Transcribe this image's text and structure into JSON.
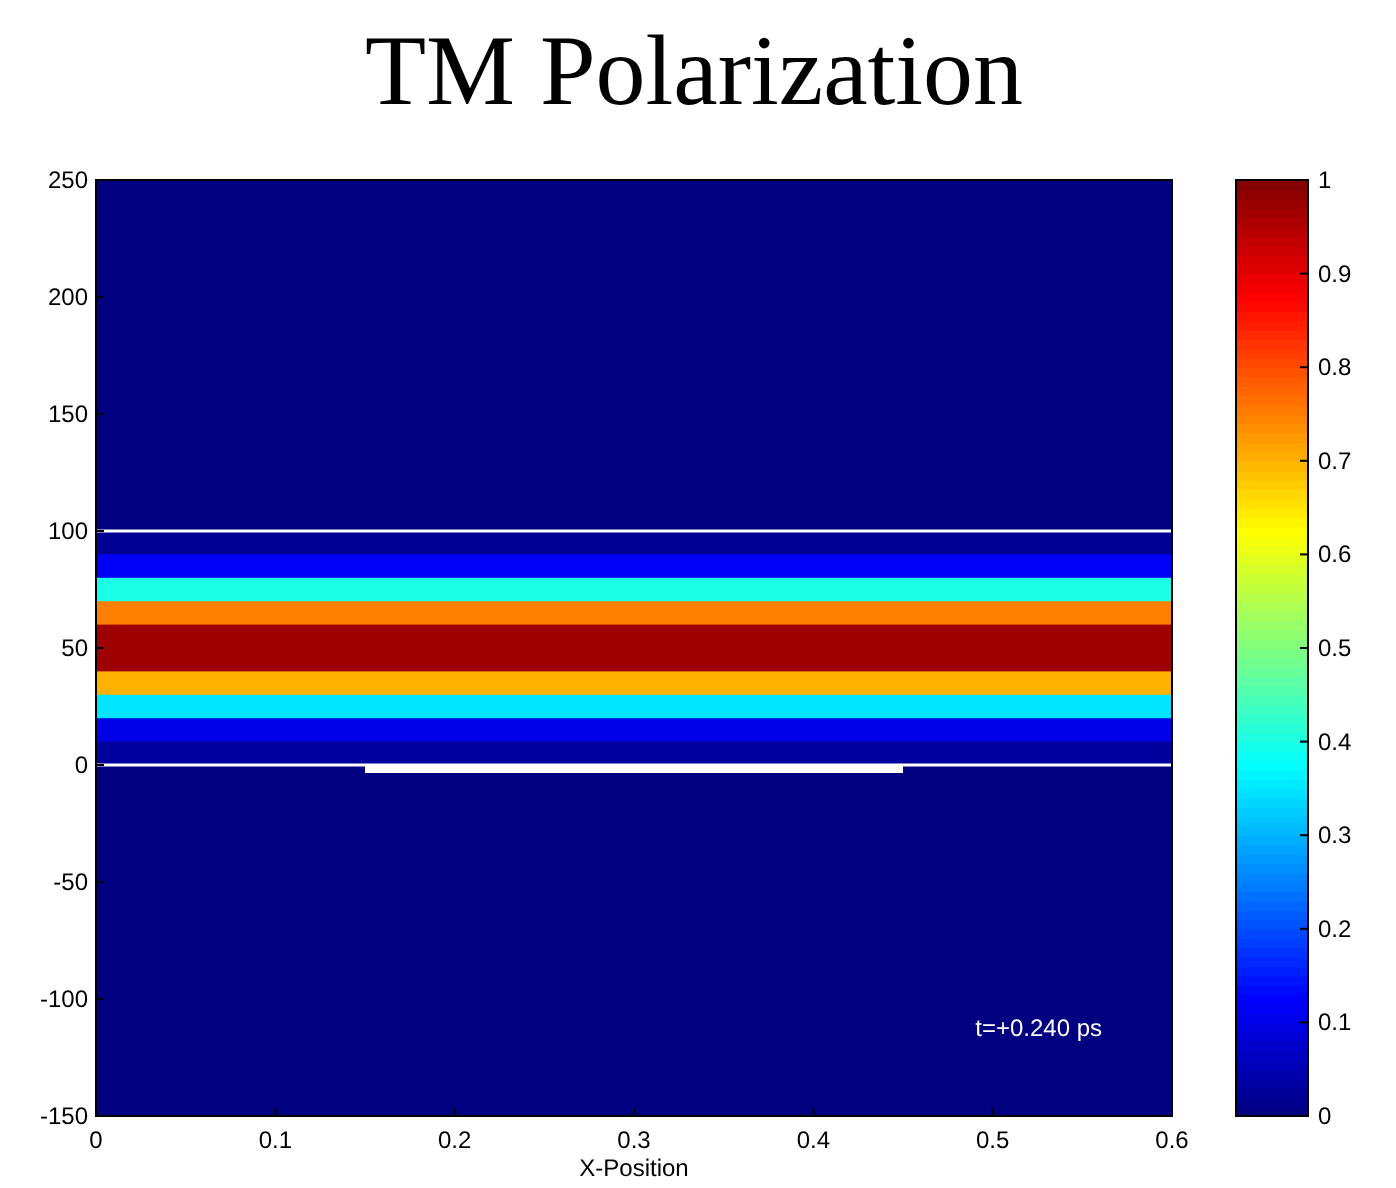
{
  "chart_data": {
    "type": "heatmap",
    "title": "TM Polarization",
    "xlabel": "X-Position",
    "xlim": [
      0,
      0.6
    ],
    "xticks": [
      0,
      0.1,
      0.2,
      0.3,
      0.4,
      0.5,
      0.6
    ],
    "ylim": [
      -150,
      250
    ],
    "yticks": [
      -150,
      -100,
      -50,
      0,
      50,
      100,
      150,
      200,
      250
    ],
    "clim": [
      0,
      1
    ],
    "cticks": [
      0,
      0.1,
      0.2,
      0.3,
      0.4,
      0.5,
      0.6,
      0.7,
      0.8,
      0.9,
      1
    ],
    "cells": [
      [
        0
      ],
      [
        0
      ],
      [
        0
      ],
      [
        0
      ],
      [
        0
      ],
      [
        0
      ],
      [
        0
      ],
      [
        0
      ],
      [
        0
      ],
      [
        0
      ],
      [
        0
      ],
      [
        0
      ],
      [
        0
      ],
      [
        0
      ],
      [
        0
      ],
      [
        0.02
      ],
      [
        0.12
      ],
      [
        0.4
      ],
      [
        0.75
      ],
      [
        0.97
      ],
      [
        0.97
      ],
      [
        0.7
      ],
      [
        0.35
      ],
      [
        0.1
      ],
      [
        0.03
      ],
      [
        0
      ],
      [
        0
      ],
      [
        0
      ],
      [
        0
      ],
      [
        0
      ],
      [
        0
      ],
      [
        0
      ],
      [
        0
      ],
      [
        0
      ],
      [
        0
      ],
      [
        0
      ],
      [
        0
      ],
      [
        0
      ],
      [
        0
      ],
      [
        0
      ]
    ],
    "ref_lines": [
      {
        "axis": "y",
        "value": 100,
        "color": "#ffffff"
      },
      {
        "axis": "y",
        "value": 0,
        "color": "#ffffff"
      }
    ],
    "annotations": [
      "t=+0.240 ps"
    ]
  }
}
